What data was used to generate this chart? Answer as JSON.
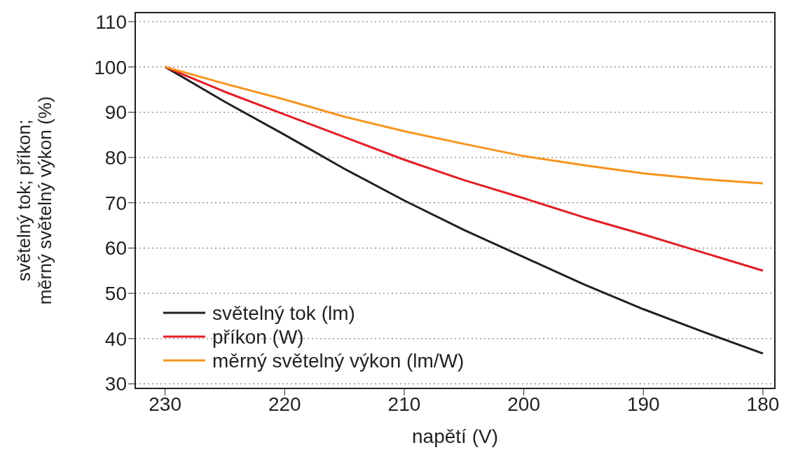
{
  "chart_data": {
    "type": "line",
    "xlabel": "napětí (V)",
    "ylabel": "světelný tok; příkon;\nměrný světelný výkon (%)",
    "x": [
      230,
      225,
      220,
      215,
      210,
      205,
      200,
      195,
      190,
      185,
      180
    ],
    "series": [
      {
        "name": "světelný tok (lm)",
        "color": "#231f20",
        "values": [
          100,
          92.3,
          85,
          77.5,
          70.5,
          64,
          58,
          52,
          46.5,
          41.5,
          36.7
        ]
      },
      {
        "name": "příkon (W)",
        "color": "#e31e24",
        "values": [
          100,
          94.5,
          89.5,
          84.5,
          79.5,
          75,
          71,
          66.8,
          63,
          59,
          55
        ]
      },
      {
        "name": "měrný světelný výkon (lm/W)",
        "color": "#f7941d",
        "values": [
          100,
          96.3,
          92.8,
          89,
          85.8,
          83,
          80.3,
          78.3,
          76.5,
          75.2,
          74.3
        ]
      }
    ],
    "xlim": [
      232.5,
      179
    ],
    "xticks": [
      230,
      220,
      210,
      200,
      190,
      180
    ],
    "ylim": [
      29,
      112
    ],
    "yticks": [
      30,
      40,
      50,
      60,
      70,
      80,
      90,
      100,
      110
    ],
    "grid": "y",
    "legend": "bottom left",
    "marker": "none",
    "line_style": "solid"
  }
}
